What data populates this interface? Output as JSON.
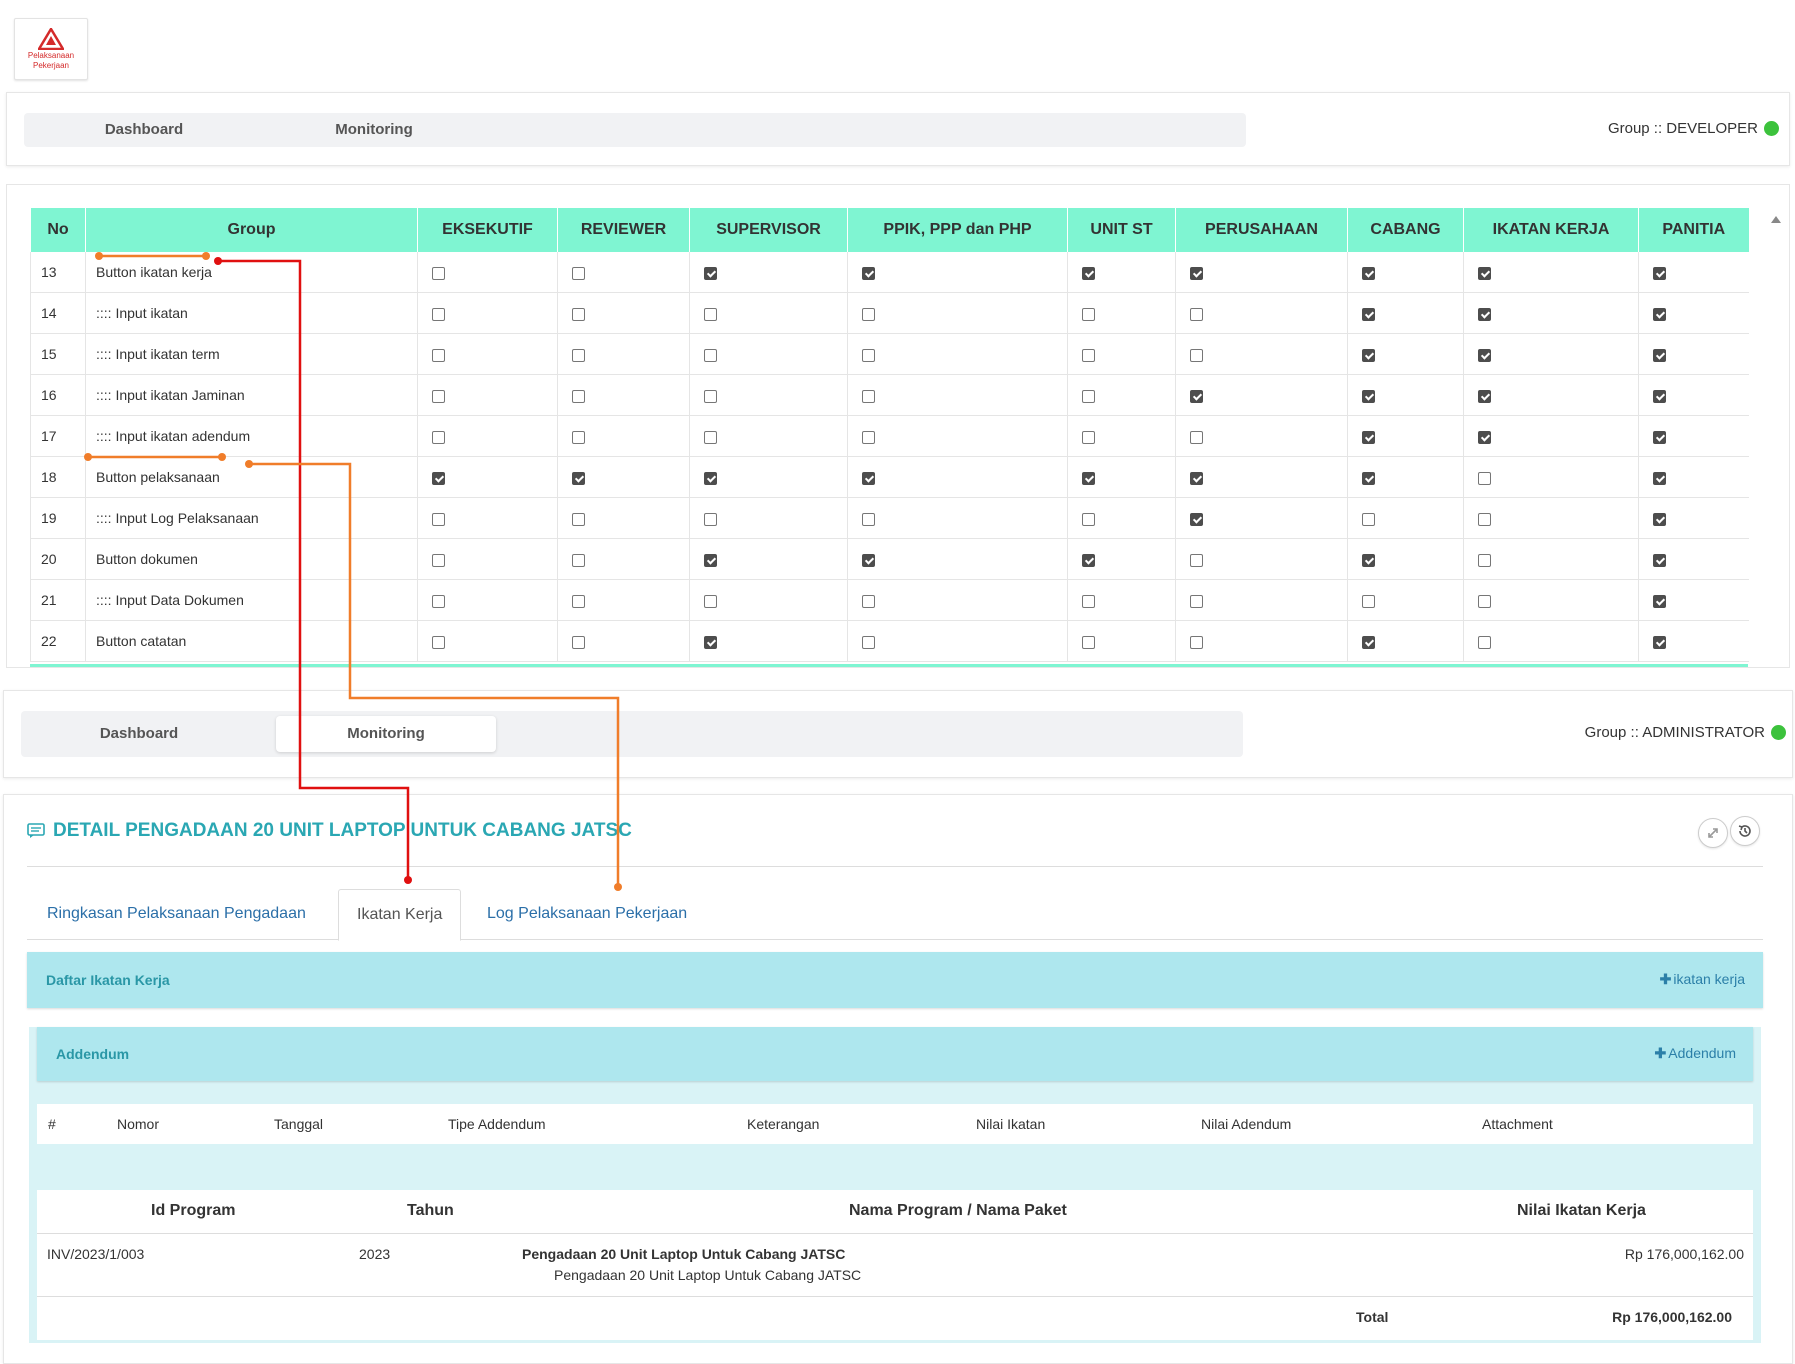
{
  "logo": {
    "text_line1": "Pelaksanaan",
    "text_line2": "Pekerjaan"
  },
  "top_nav": {
    "tabs": [
      {
        "label": "Dashboard"
      },
      {
        "label": "Monitoring"
      }
    ],
    "group_label": "Group :: DEVELOPER",
    "status_color": "#3cc23c"
  },
  "permissions_table": {
    "headers": [
      "No",
      "Group",
      "EKSEKUTIF",
      "REVIEWER",
      "SUPERVISOR",
      "PPIK, PPP dan PHP",
      "UNIT ST",
      "PERUSAHAAN",
      "CABANG",
      "IKATAN KERJA",
      "PANITIA"
    ],
    "header_color": "#7ff5d2",
    "rows": [
      {
        "no": "13",
        "group": "Button ikatan kerja",
        "checks": [
          false,
          false,
          true,
          true,
          true,
          true,
          true,
          true,
          true
        ]
      },
      {
        "no": "14",
        "group": ":::: Input ikatan",
        "checks": [
          false,
          false,
          false,
          false,
          false,
          false,
          true,
          true,
          true
        ]
      },
      {
        "no": "15",
        "group": ":::: Input ikatan term",
        "checks": [
          false,
          false,
          false,
          false,
          false,
          false,
          true,
          true,
          true
        ]
      },
      {
        "no": "16",
        "group": ":::: Input ikatan Jaminan",
        "checks": [
          false,
          false,
          false,
          false,
          false,
          true,
          true,
          true,
          true
        ]
      },
      {
        "no": "17",
        "group": ":::: Input ikatan adendum",
        "checks": [
          false,
          false,
          false,
          false,
          false,
          false,
          true,
          true,
          true
        ]
      },
      {
        "no": "18",
        "group": "Button pelaksanaan",
        "checks": [
          true,
          true,
          true,
          true,
          true,
          true,
          true,
          false,
          true
        ]
      },
      {
        "no": "19",
        "group": ":::: Input Log Pelaksanaan",
        "checks": [
          false,
          false,
          false,
          false,
          false,
          true,
          false,
          false,
          true
        ]
      },
      {
        "no": "20",
        "group": "Button dokumen",
        "checks": [
          false,
          false,
          true,
          true,
          true,
          false,
          true,
          false,
          true
        ]
      },
      {
        "no": "21",
        "group": ":::: Input Data Dokumen",
        "checks": [
          false,
          false,
          false,
          false,
          false,
          false,
          false,
          false,
          true
        ]
      },
      {
        "no": "22",
        "group": "Button catatan",
        "checks": [
          false,
          false,
          true,
          false,
          false,
          false,
          true,
          false,
          true
        ]
      }
    ]
  },
  "second_nav": {
    "tabs": [
      {
        "label": "Dashboard"
      },
      {
        "label": "Monitoring"
      }
    ],
    "group_label": "Group :: ADMINISTRATOR"
  },
  "detail": {
    "title": "DETAIL PENGADAAN 20 UNIT LAPTOP UNTUK CABANG JATSC",
    "tabs": [
      {
        "label": "Ringkasan Pelaksanaan Pengadaan"
      },
      {
        "label": "Ikatan Kerja"
      },
      {
        "label": "Log Pelaksanaan Pekerjaan"
      }
    ],
    "daftar": {
      "title": "Daftar Ikatan Kerja",
      "action": "ikatan kerja"
    },
    "addendum": {
      "title": "Addendum",
      "action": "Addendum",
      "columns": [
        "#",
        "Nomor",
        "Tanggal",
        "Tipe Addendum",
        "Keterangan",
        "Nilai Ikatan",
        "Nilai Adendum",
        "Attachment"
      ]
    },
    "program_table": {
      "columns": [
        "Id Program",
        "Tahun",
        "Nama Program / Nama Paket",
        "Nilai Ikatan Kerja"
      ],
      "rows": [
        {
          "id": "INV/2023/1/003",
          "tahun": "2023",
          "program": "Pengadaan 20 Unit Laptop Untuk Cabang JATSC",
          "paket": "Pengadaan 20 Unit Laptop Untuk Cabang JATSC",
          "nilai": "Rp 176,000,162.00"
        }
      ],
      "total_label": "Total",
      "total_value": "Rp 176,000,162.00"
    }
  },
  "annotation_colors": {
    "red": "#e01010",
    "orange": "#f07d2a"
  }
}
